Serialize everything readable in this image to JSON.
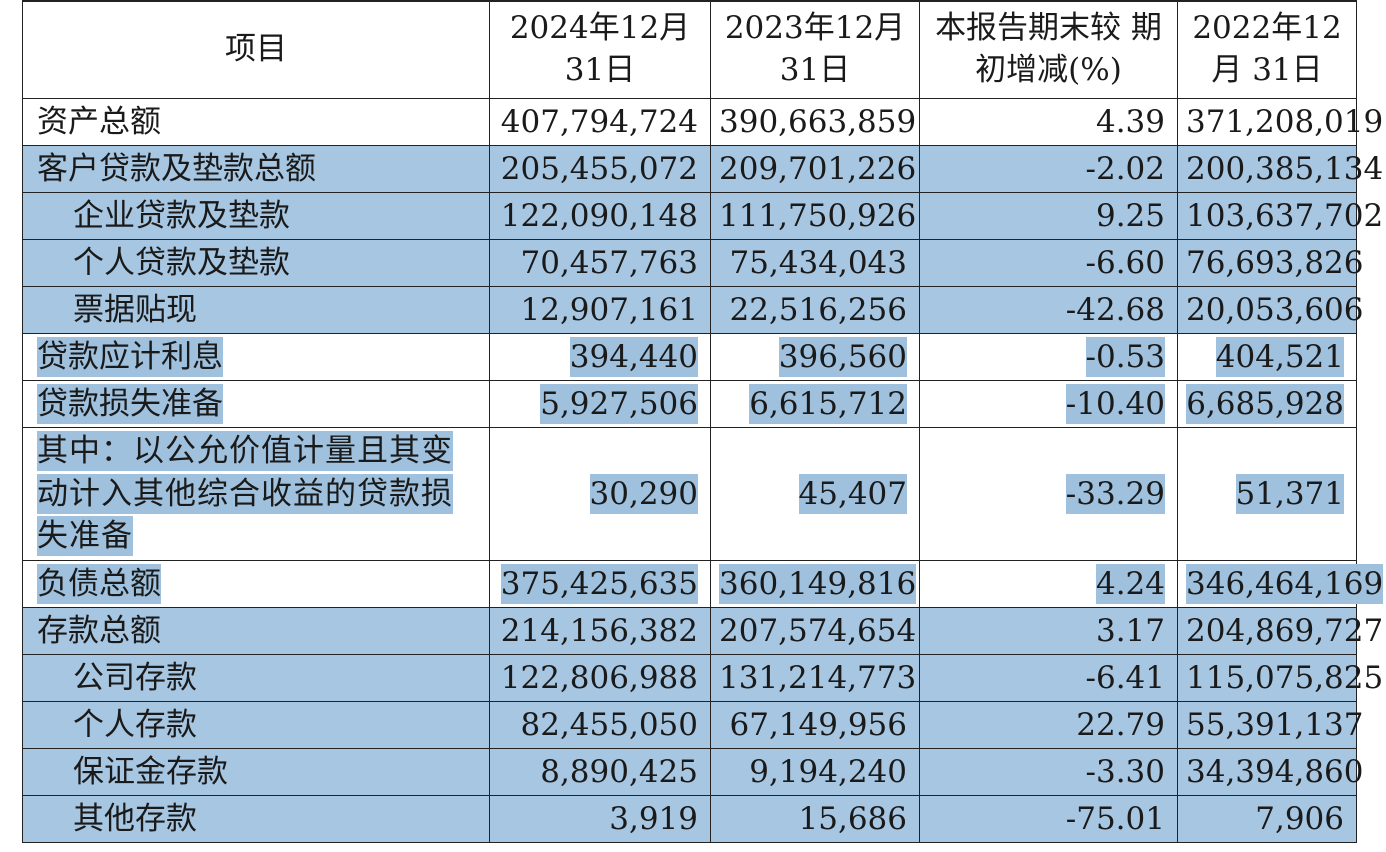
{
  "header": {
    "item": "项目",
    "c1": "2024年12月 31日",
    "c2": "2023年12月 31日",
    "c3": "本报告期末较 期初增减(%)",
    "c4": "2022年12月 31日"
  },
  "rows": [
    {
      "label": "资产总额",
      "v1": "407,794,724",
      "v2": "390,663,859",
      "v3": "4.39",
      "v4": "371,208,019"
    },
    {
      "label": "客户贷款及垫款总额",
      "v1": "205,455,072",
      "v2": "209,701,226",
      "v3": "-2.02",
      "v4": "200,385,134"
    },
    {
      "label": "企业贷款及垫款",
      "v1": "122,090,148",
      "v2": "111,750,926",
      "v3": "9.25",
      "v4": "103,637,702"
    },
    {
      "label": "个人贷款及垫款",
      "v1": "70,457,763",
      "v2": "75,434,043",
      "v3": "-6.60",
      "v4": "76,693,826"
    },
    {
      "label": "票据贴现",
      "v1": "12,907,161",
      "v2": "22,516,256",
      "v3": "-42.68",
      "v4": "20,053,606"
    },
    {
      "label": "贷款应计利息",
      "v1": "394,440",
      "v2": "396,560",
      "v3": "-0.53",
      "v4": "404,521"
    },
    {
      "label": "贷款损失准备",
      "v1": "5,927,506",
      "v2": "6,615,712",
      "v3": "-10.40",
      "v4": "6,685,928"
    },
    {
      "label": "其中：以公允价值计量且其变动计入其他综合收益的贷款损失准备",
      "v1": "30,290",
      "v2": "45,407",
      "v3": "-33.29",
      "v4": "51,371"
    },
    {
      "label": "负债总额",
      "v1": "375,425,635",
      "v2": "360,149,816",
      "v3": "4.24",
      "v4": "346,464,169"
    },
    {
      "label": "存款总额",
      "v1": "214,156,382",
      "v2": "207,574,654",
      "v3": "3.17",
      "v4": "204,869,727"
    },
    {
      "label": "公司存款",
      "v1": "122,806,988",
      "v2": "131,214,773",
      "v3": "-6.41",
      "v4": "115,075,825"
    },
    {
      "label": "个人存款",
      "v1": "82,455,050",
      "v2": "67,149,956",
      "v3": "22.79",
      "v4": "55,391,137"
    },
    {
      "label": "保证金存款",
      "v1": "8,890,425",
      "v2": "9,194,240",
      "v3": "-3.30",
      "v4": "34,394,860"
    },
    {
      "label": "其他存款",
      "v1": "3,919",
      "v2": "15,686",
      "v3": "-75.01",
      "v4": "7,906"
    }
  ],
  "highlight_color": "#9fc1de"
}
